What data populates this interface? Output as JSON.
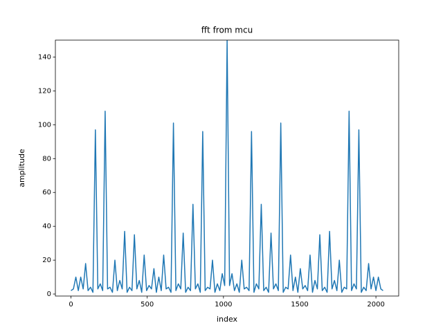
{
  "chart_data": {
    "type": "line",
    "title": "fft from mcu",
    "x_label": "index",
    "y_label": "amplitude",
    "x": [
      0,
      16,
      32,
      48,
      64,
      80,
      96,
      112,
      128,
      144,
      160,
      176,
      192,
      208,
      224,
      240,
      256,
      272,
      288,
      304,
      320,
      336,
      352,
      368,
      384,
      400,
      416,
      432,
      448,
      464,
      480,
      496,
      512,
      528,
      544,
      560,
      576,
      592,
      608,
      624,
      640,
      656,
      672,
      688,
      704,
      720,
      736,
      752,
      768,
      784,
      800,
      816,
      832,
      848,
      864,
      880,
      896,
      912,
      928,
      944,
      960,
      976,
      992,
      1008,
      1024,
      1040,
      1056,
      1072,
      1088,
      1104,
      1120,
      1136,
      1152,
      1168,
      1184,
      1200,
      1216,
      1232,
      1248,
      1264,
      1280,
      1296,
      1312,
      1328,
      1344,
      1360,
      1376,
      1392,
      1408,
      1424,
      1440,
      1456,
      1472,
      1488,
      1504,
      1520,
      1536,
      1552,
      1568,
      1584,
      1600,
      1616,
      1632,
      1648,
      1664,
      1680,
      1696,
      1712,
      1728,
      1744,
      1760,
      1776,
      1792,
      1808,
      1824,
      1840,
      1856,
      1872,
      1888,
      1904,
      1920,
      1936,
      1952,
      1968,
      1984,
      2000,
      2016,
      2032,
      2047
    ],
    "values": [
      2,
      3,
      10,
      2,
      10,
      3,
      18,
      2,
      4,
      1,
      97,
      3,
      6,
      2,
      108,
      3,
      4,
      1,
      20,
      2,
      8,
      3,
      37,
      1,
      4,
      2,
      35,
      3,
      8,
      1,
      23,
      2,
      5,
      3,
      15,
      1,
      10,
      2,
      23,
      3,
      4,
      1,
      101,
      2,
      6,
      3,
      36,
      1,
      4,
      2,
      53,
      3,
      6,
      1,
      96,
      2,
      4,
      3,
      20,
      1,
      6,
      2,
      12,
      5,
      150,
      5,
      12,
      2,
      6,
      1,
      20,
      3,
      4,
      2,
      96,
      1,
      6,
      3,
      53,
      2,
      4,
      1,
      36,
      3,
      6,
      2,
      101,
      1,
      4,
      3,
      23,
      2,
      10,
      1,
      15,
      3,
      5,
      2,
      23,
      1,
      8,
      3,
      35,
      2,
      4,
      1,
      37,
      3,
      8,
      2,
      20,
      1,
      4,
      3,
      108,
      2,
      6,
      3,
      97,
      1,
      4,
      2,
      18,
      3,
      10,
      2,
      10,
      3,
      2
    ],
    "color": "#1f77b4",
    "xlim": [
      -102.35,
      2149.35
    ],
    "ylim": [
      -1.2,
      150
    ],
    "xticks": [
      0,
      500,
      1000,
      1500,
      2000
    ],
    "yticks": [
      0,
      20,
      40,
      60,
      80,
      100,
      120,
      140
    ]
  }
}
